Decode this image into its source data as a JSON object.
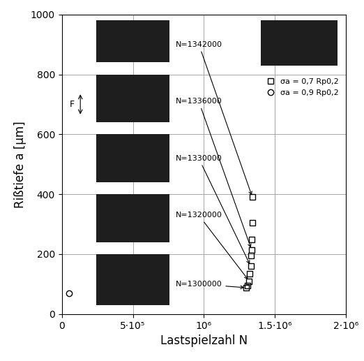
{
  "chart_data": {
    "type": "scatter",
    "x_label": "Lastspielzahl N",
    "y_label": "Rißtiefe a [µm]",
    "series": [
      {
        "name": "σa = 0,7 Rp0,2",
        "color": "#000000",
        "marker": "square",
        "x": [
          1300000,
          1310000,
          1320000,
          1325000,
          1330000,
          1333000,
          1336000,
          1338000,
          1340000,
          1342000
        ],
        "values": [
          88,
          95,
          110,
          135,
          160,
          195,
          215,
          250,
          305,
          390
        ]
      },
      {
        "name": "σa = 0,9 Rp0,2",
        "color": "#000000",
        "marker": "circle",
        "x": [
          50000
        ],
        "values": [
          70
        ]
      }
    ],
    "annotations": [
      {
        "text": "N=1300000",
        "x": 1300000,
        "y": 88
      },
      {
        "text": "N=1320000",
        "x": 1320000,
        "y": 110
      },
      {
        "text": "N=1330000",
        "x": 1330000,
        "y": 160
      },
      {
        "text": "N=1336000",
        "x": 1336000,
        "y": 215
      },
      {
        "text": "N=1342000",
        "x": 1342000,
        "y": 390
      }
    ],
    "notes": [
      "F"
    ],
    "xlim": [
      0,
      2000000
    ],
    "xticks": [
      0,
      {
        "value": 500000,
        "label": "5·10⁵"
      },
      {
        "value": 1000000,
        "label": "10⁶"
      },
      {
        "value": 1500000,
        "label": "1.5·10⁶"
      },
      {
        "value": 2000000,
        "label": "2·10⁶"
      }
    ],
    "ylim": [
      0,
      1000
    ],
    "yticks": [
      0,
      200,
      400,
      600,
      800,
      1000
    ],
    "grid": true,
    "legend": "upper right"
  }
}
